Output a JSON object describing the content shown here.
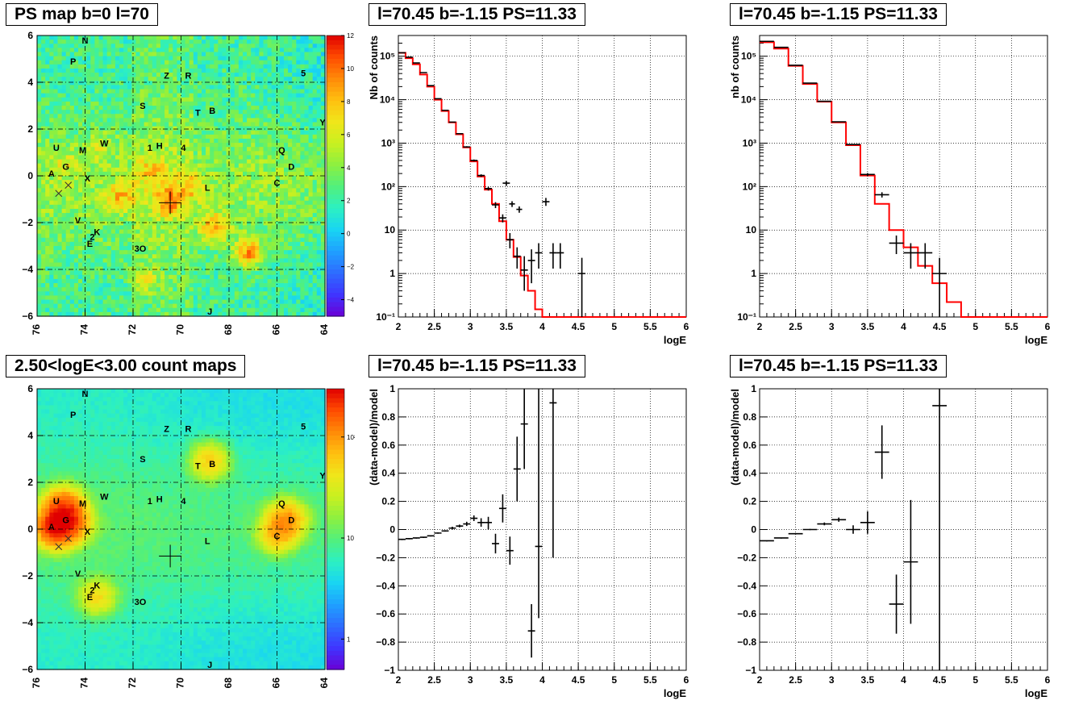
{
  "colors": {
    "model_line": "#ff0000",
    "data_points": "#000000",
    "grid": "#000000",
    "map_palette": [
      "#6a00d6",
      "#3f35ff",
      "#2e6cff",
      "#1fa0ff",
      "#19d5f2",
      "#2cf0c2",
      "#52f07c",
      "#8cf040",
      "#c8f020",
      "#f0e61a",
      "#ffbf10",
      "#ff8a08",
      "#ff4b00",
      "#e00000"
    ]
  },
  "map_labels_top": [
    {
      "t": "N",
      "l": 74,
      "b": 5.8
    },
    {
      "t": "P",
      "l": 74.5,
      "b": 4.9
    },
    {
      "t": "Z",
      "l": 70.6,
      "b": 4.3
    },
    {
      "t": "R",
      "l": 69.7,
      "b": 4.3
    },
    {
      "t": "5",
      "l": 64.9,
      "b": 4.4
    },
    {
      "t": "S",
      "l": 71.6,
      "b": 3.0
    },
    {
      "t": "T",
      "l": 69.3,
      "b": 2.7
    },
    {
      "t": "B",
      "l": 68.7,
      "b": 2.8
    },
    {
      "t": "Y",
      "l": 64.1,
      "b": 2.3
    },
    {
      "t": "U",
      "l": 75.2,
      "b": 1.2
    },
    {
      "t": "M",
      "l": 74.1,
      "b": 1.1
    },
    {
      "t": "W",
      "l": 73.2,
      "b": 1.4
    },
    {
      "t": "1",
      "l": 71.3,
      "b": 1.2
    },
    {
      "t": "H",
      "l": 70.9,
      "b": 1.3
    },
    {
      "t": "4",
      "l": 69.9,
      "b": 1.2
    },
    {
      "t": "Q",
      "l": 65.8,
      "b": 1.1
    },
    {
      "t": "D",
      "l": 65.4,
      "b": 0.4
    },
    {
      "t": "G",
      "l": 74.8,
      "b": 0.4
    },
    {
      "t": "A",
      "l": 75.4,
      "b": 0.1
    },
    {
      "t": "X",
      "l": 73.9,
      "b": -0.1
    },
    {
      "t": "C",
      "l": 66.0,
      "b": -0.3
    },
    {
      "t": "L",
      "l": 68.9,
      "b": -0.5
    },
    {
      "t": "V",
      "l": 74.3,
      "b": -1.9
    },
    {
      "t": "K",
      "l": 73.5,
      "b": -2.4
    },
    {
      "t": "2",
      "l": 73.7,
      "b": -2.6
    },
    {
      "t": "E",
      "l": 73.8,
      "b": -2.9
    },
    {
      "t": "3O",
      "l": 71.7,
      "b": -3.1
    },
    {
      "t": "J",
      "l": 68.8,
      "b": -5.8
    }
  ],
  "panels": {
    "ps_map": {
      "title": "PS map b=0 l=70",
      "palette_ticks": [
        "12",
        "10",
        "8",
        "6",
        "4",
        "2",
        "0",
        "−2",
        "−4"
      ],
      "x_ticks": [
        "76",
        "74",
        "72",
        "70",
        "68",
        "66",
        "64"
      ],
      "y_ticks": [
        "6",
        "4",
        "2",
        "0",
        "−2",
        "−4",
        "−6"
      ]
    },
    "count_map": {
      "title": "2.50<logE<3.00 count maps",
      "palette_ticks": [
        "10²",
        "10",
        "1"
      ],
      "x_ticks": [
        "76",
        "74",
        "72",
        "70",
        "68",
        "66",
        "64"
      ],
      "y_ticks": [
        "6",
        "4",
        "2",
        "0",
        "−2",
        "−4",
        "−6"
      ]
    },
    "spec_left": {
      "title": "l=70.45 b=-1.15 PS=11.33",
      "ylabel": "Nb of counts",
      "xlabel": "logE",
      "x_ticks": [
        "2",
        "2.5",
        "3",
        "3.5",
        "4",
        "4.5",
        "5",
        "5.5",
        "6"
      ],
      "y_ticks": [
        "10⁵",
        "10⁴",
        "10³",
        "10²",
        "10",
        "1",
        "10⁻¹"
      ]
    },
    "spec_right": {
      "title": "l=70.45 b=-1.15 PS=11.33",
      "ylabel": "nb of counts",
      "xlabel": "logE",
      "x_ticks": [
        "2",
        "2.5",
        "3",
        "3.5",
        "4",
        "4.5",
        "5",
        "5.5",
        "6"
      ],
      "y_ticks": [
        "10⁵",
        "10⁴",
        "10³",
        "10²",
        "10",
        "1",
        "10⁻¹"
      ]
    },
    "res_left": {
      "title": "l=70.45 b=-1.15 PS=11.33",
      "ylabel": "(data-model)/model",
      "xlabel": "logE",
      "x_ticks": [
        "2",
        "2.5",
        "3",
        "3.5",
        "4",
        "4.5",
        "5",
        "5.5",
        "6"
      ],
      "y_ticks": [
        "1",
        "0.8",
        "0.6",
        "0.4",
        "0.2",
        "0",
        "−0.2",
        "−0.4",
        "−0.6",
        "−0.8",
        "−1"
      ]
    },
    "res_right": {
      "title": "l=70.45 b=-1.15 PS=11.33",
      "ylabel": "(data-model)/model",
      "xlabel": "logE",
      "x_ticks": [
        "2",
        "2.5",
        "3",
        "3.5",
        "4",
        "4.5",
        "5",
        "5.5",
        "6"
      ],
      "y_ticks": [
        "1",
        "0.8",
        "0.6",
        "0.4",
        "0.2",
        "0",
        "−0.2",
        "−0.4",
        "−0.6",
        "−0.8",
        "−1"
      ]
    }
  },
  "chart_data": [
    {
      "type": "heatmap",
      "title": "PS map b=0 l=70",
      "xlim": [
        76,
        64
      ],
      "ylim": [
        -6,
        6
      ],
      "zlim": [
        -5,
        12
      ],
      "hotspots": [
        {
          "l": 70.5,
          "b": -1.1,
          "v": 9
        },
        {
          "l": 67.2,
          "b": -3.3,
          "v": 10
        },
        {
          "l": 72.5,
          "b": -0.9,
          "v": 8
        },
        {
          "l": 71.2,
          "b": 0.2,
          "v": 7
        },
        {
          "l": 69.6,
          "b": -0.4,
          "v": 7
        },
        {
          "l": 71.5,
          "b": -4.4,
          "v": 7
        },
        {
          "l": 68.6,
          "b": -2.2,
          "v": 9
        },
        {
          "l": 73.4,
          "b": 1.2,
          "v": 6
        },
        {
          "l": 74.8,
          "b": 0.5,
          "v": 6
        }
      ],
      "markers": [
        {
          "l": 70.45,
          "b": -1.15
        }
      ]
    },
    {
      "type": "heatmap",
      "title": "2.50<logE<3.00 count maps",
      "xlim": [
        76,
        64
      ],
      "ylim": [
        -6,
        6
      ],
      "z_scale": "log",
      "zlim": [
        0.5,
        300
      ],
      "hotspots": [
        {
          "l": 75.2,
          "b": 0.1,
          "v": 250
        },
        {
          "l": 74.9,
          "b": 0.9,
          "v": 160
        },
        {
          "l": 74.6,
          "b": 0.3,
          "v": 120
        },
        {
          "l": 65.6,
          "b": 0.4,
          "v": 90
        },
        {
          "l": 66.0,
          "b": -0.2,
          "v": 60
        },
        {
          "l": 68.8,
          "b": 2.9,
          "v": 50
        },
        {
          "l": 73.5,
          "b": -2.9,
          "v": 40
        }
      ],
      "markers": [
        {
          "l": 70.45,
          "b": -1.15
        }
      ]
    },
    {
      "type": "line",
      "title": "l=70.45 b=-1.15 PS=11.33",
      "xlabel": "logE",
      "ylabel": "Nb of counts",
      "xlim": [
        2,
        6
      ],
      "ylim": [
        0.1,
        300000
      ],
      "y_scale": "log",
      "model_bins": {
        "start": 2.0,
        "width": 0.1,
        "values": [
          120000,
          90000,
          65000,
          38000,
          20000,
          10000,
          5500,
          3000,
          1600,
          800,
          380,
          170,
          85,
          40,
          16,
          6,
          2.4,
          0.9,
          0.4,
          0.15,
          0.1,
          0.1,
          0.1,
          0.1,
          0.1,
          0.1,
          0.1,
          0.1,
          0.1,
          0.1,
          0.1,
          0.1,
          0.1,
          0.1,
          0.1,
          0.1,
          0.1,
          0.1,
          0.1,
          0.1
        ]
      },
      "data_points": [
        {
          "x": 2.05,
          "y": 120000,
          "dx": 0.05,
          "lo": 118000,
          "hi": 122000
        },
        {
          "x": 2.15,
          "y": 95000,
          "dx": 0.05,
          "lo": 93000,
          "hi": 97000
        },
        {
          "x": 2.25,
          "y": 70000,
          "dx": 0.05,
          "lo": 69000,
          "hi": 71000
        },
        {
          "x": 2.35,
          "y": 42000,
          "dx": 0.05,
          "lo": 41000,
          "hi": 43000
        },
        {
          "x": 2.45,
          "y": 21000,
          "dx": 0.05,
          "lo": 20500,
          "hi": 21500
        },
        {
          "x": 2.55,
          "y": 10500,
          "dx": 0.05,
          "lo": 10200,
          "hi": 10800
        },
        {
          "x": 2.65,
          "y": 5700,
          "dx": 0.05,
          "lo": 5600,
          "hi": 5800
        },
        {
          "x": 2.75,
          "y": 3050,
          "dx": 0.05,
          "lo": 2990,
          "hi": 3110
        },
        {
          "x": 2.85,
          "y": 1650,
          "dx": 0.05,
          "lo": 1610,
          "hi": 1690
        },
        {
          "x": 2.95,
          "y": 820,
          "dx": 0.05,
          "lo": 790,
          "hi": 850
        },
        {
          "x": 3.05,
          "y": 400,
          "dx": 0.05,
          "lo": 380,
          "hi": 420
        },
        {
          "x": 3.15,
          "y": 180,
          "dx": 0.05,
          "lo": 168,
          "hi": 192
        },
        {
          "x": 3.25,
          "y": 90,
          "dx": 0.05,
          "lo": 81,
          "hi": 99
        },
        {
          "x": 3.35,
          "y": 38,
          "dx": 0.05,
          "lo": 32,
          "hi": 44
        },
        {
          "x": 3.45,
          "y": 19,
          "dx": 0.05,
          "lo": 15,
          "hi": 23
        },
        {
          "x": 3.55,
          "y": 6,
          "dx": 0.05,
          "lo": 3.8,
          "hi": 8.5
        },
        {
          "x": 3.65,
          "y": 2.5,
          "dx": 0.05,
          "lo": 1.3,
          "hi": 4
        },
        {
          "x": 3.75,
          "y": 1.2,
          "dx": 0.05,
          "lo": 0.4,
          "hi": 2.5
        },
        {
          "x": 3.85,
          "y": 2,
          "dx": 0.05,
          "lo": 0.6,
          "hi": 3.6
        },
        {
          "x": 3.95,
          "y": 3,
          "dx": 0.05,
          "lo": 1.3,
          "hi": 5
        },
        {
          "x": 4.05,
          "y": 45,
          "dx": 0.05,
          "lo": 36,
          "hi": 55
        },
        {
          "x": 3.5,
          "y": 120,
          "dx": 0.05,
          "lo": 105,
          "hi": 135
        },
        {
          "x": 3.58,
          "y": 40,
          "dx": 0.04,
          "lo": 34,
          "hi": 46
        },
        {
          "x": 3.68,
          "y": 30,
          "dx": 0.04,
          "lo": 25,
          "hi": 35
        },
        {
          "x": 4.15,
          "y": 3,
          "dx": 0.05,
          "lo": 1.3,
          "hi": 5
        },
        {
          "x": 4.25,
          "y": 3,
          "dx": 0.05,
          "lo": 1.3,
          "hi": 5
        },
        {
          "x": 4.55,
          "y": 1,
          "dx": 0.05,
          "lo": 0.1,
          "hi": 2.3
        }
      ]
    },
    {
      "type": "line",
      "title": "l=70.45 b=-1.15 PS=11.33",
      "xlabel": "logE",
      "ylabel": "nb of counts",
      "xlim": [
        2,
        6
      ],
      "ylim": [
        0.1,
        300000
      ],
      "y_scale": "log",
      "model_bins": {
        "start": 2.0,
        "width": 0.2,
        "values": [
          210000,
          150000,
          60000,
          23000,
          9000,
          3000,
          900,
          180,
          40,
          10,
          4,
          1.5,
          0.6,
          0.22,
          0.1,
          0.1,
          0.1,
          0.1,
          0.1,
          0.1
        ]
      },
      "data_points": [
        {
          "x": 2.1,
          "y": 220000,
          "dx": 0.1,
          "lo": 218000,
          "hi": 222000
        },
        {
          "x": 2.3,
          "y": 160000,
          "dx": 0.1,
          "lo": 158000,
          "hi": 162000
        },
        {
          "x": 2.5,
          "y": 62000,
          "dx": 0.1,
          "lo": 61000,
          "hi": 63000
        },
        {
          "x": 2.7,
          "y": 24000,
          "dx": 0.1,
          "lo": 23500,
          "hi": 24500
        },
        {
          "x": 2.9,
          "y": 9200,
          "dx": 0.1,
          "lo": 9000,
          "hi": 9400
        },
        {
          "x": 3.1,
          "y": 3100,
          "dx": 0.1,
          "lo": 3000,
          "hi": 3200
        },
        {
          "x": 3.3,
          "y": 930,
          "dx": 0.1,
          "lo": 900,
          "hi": 960
        },
        {
          "x": 3.5,
          "y": 190,
          "dx": 0.1,
          "lo": 175,
          "hi": 205
        },
        {
          "x": 3.7,
          "y": 65,
          "dx": 0.1,
          "lo": 56,
          "hi": 74
        },
        {
          "x": 3.9,
          "y": 5,
          "dx": 0.1,
          "lo": 2.8,
          "hi": 7.5
        },
        {
          "x": 4.1,
          "y": 3,
          "dx": 0.1,
          "lo": 1.3,
          "hi": 5
        },
        {
          "x": 4.3,
          "y": 3,
          "dx": 0.1,
          "lo": 1.3,
          "hi": 5
        },
        {
          "x": 4.5,
          "y": 1,
          "dx": 0.1,
          "lo": 0.1,
          "hi": 2.3
        }
      ]
    },
    {
      "type": "scatter",
      "title": "l=70.45 b=-1.15 PS=11.33",
      "xlabel": "logE",
      "ylabel": "(data-model)/model",
      "xlim": [
        2,
        6
      ],
      "ylim": [
        -1,
        1
      ],
      "data_points": [
        {
          "x": 2.05,
          "y": -0.07,
          "dx": 0.05,
          "lo": -0.075,
          "hi": -0.065
        },
        {
          "x": 2.15,
          "y": -0.065,
          "dx": 0.05,
          "lo": -0.07,
          "hi": -0.06
        },
        {
          "x": 2.25,
          "y": -0.06,
          "dx": 0.05,
          "lo": -0.065,
          "hi": -0.055
        },
        {
          "x": 2.35,
          "y": -0.055,
          "dx": 0.05,
          "lo": -0.06,
          "hi": -0.05
        },
        {
          "x": 2.45,
          "y": -0.045,
          "dx": 0.05,
          "lo": -0.05,
          "hi": -0.04
        },
        {
          "x": 2.55,
          "y": -0.025,
          "dx": 0.05,
          "lo": -0.03,
          "hi": -0.02
        },
        {
          "x": 2.65,
          "y": -0.01,
          "dx": 0.05,
          "lo": -0.015,
          "hi": -0.005
        },
        {
          "x": 2.75,
          "y": 0.01,
          "dx": 0.05,
          "lo": 0,
          "hi": 0.02
        },
        {
          "x": 2.85,
          "y": 0.025,
          "dx": 0.05,
          "lo": 0.015,
          "hi": 0.035
        },
        {
          "x": 2.95,
          "y": 0.04,
          "dx": 0.05,
          "lo": 0.025,
          "hi": 0.055
        },
        {
          "x": 3.05,
          "y": 0.08,
          "dx": 0.05,
          "lo": 0.06,
          "hi": 0.1
        },
        {
          "x": 3.15,
          "y": 0.05,
          "dx": 0.05,
          "lo": 0.02,
          "hi": 0.08
        },
        {
          "x": 3.25,
          "y": 0.05,
          "dx": 0.05,
          "lo": 0,
          "hi": 0.09
        },
        {
          "x": 3.35,
          "y": -0.1,
          "dx": 0.05,
          "lo": -0.17,
          "hi": -0.03
        },
        {
          "x": 3.45,
          "y": 0.15,
          "dx": 0.05,
          "lo": 0.05,
          "hi": 0.25
        },
        {
          "x": 3.55,
          "y": -0.15,
          "dx": 0.05,
          "lo": -0.25,
          "hi": -0.05
        },
        {
          "x": 3.65,
          "y": 0.43,
          "dx": 0.05,
          "lo": 0.2,
          "hi": 0.66
        },
        {
          "x": 3.75,
          "y": 0.75,
          "dx": 0.05,
          "lo": 0.43,
          "hi": 1.0
        },
        {
          "x": 3.85,
          "y": -0.72,
          "dx": 0.05,
          "lo": -0.91,
          "hi": -0.53
        },
        {
          "x": 3.95,
          "y": -0.12,
          "dx": 0.05,
          "lo": -0.63,
          "hi": 1.0
        },
        {
          "x": 4.15,
          "y": 0.9,
          "dx": 0.05,
          "lo": -0.2,
          "hi": 1.0
        }
      ]
    },
    {
      "type": "scatter",
      "title": "l=70.45 b=-1.15 PS=11.33",
      "xlabel": "logE",
      "ylabel": "(data-model)/model",
      "xlim": [
        2,
        6
      ],
      "ylim": [
        -1,
        1
      ],
      "data_points": [
        {
          "x": 2.1,
          "y": -0.08,
          "dx": 0.1,
          "lo": -0.085,
          "hi": -0.075
        },
        {
          "x": 2.3,
          "y": -0.06,
          "dx": 0.1,
          "lo": -0.065,
          "hi": -0.055
        },
        {
          "x": 2.5,
          "y": -0.03,
          "dx": 0.1,
          "lo": -0.035,
          "hi": -0.025
        },
        {
          "x": 2.7,
          "y": 0,
          "dx": 0.1,
          "lo": -0.005,
          "hi": 0.005
        },
        {
          "x": 2.9,
          "y": 0.04,
          "dx": 0.1,
          "lo": 0.03,
          "hi": 0.05
        },
        {
          "x": 3.1,
          "y": 0.07,
          "dx": 0.1,
          "lo": 0.055,
          "hi": 0.085
        },
        {
          "x": 3.3,
          "y": 0,
          "dx": 0.1,
          "lo": -0.03,
          "hi": 0.03
        },
        {
          "x": 3.5,
          "y": 0.05,
          "dx": 0.1,
          "lo": -0.03,
          "hi": 0.13
        },
        {
          "x": 3.7,
          "y": 0.55,
          "dx": 0.1,
          "lo": 0.36,
          "hi": 0.74
        },
        {
          "x": 3.9,
          "y": -0.53,
          "dx": 0.1,
          "lo": -0.74,
          "hi": -0.32
        },
        {
          "x": 4.1,
          "y": -0.23,
          "dx": 0.1,
          "lo": -0.67,
          "hi": 0.21
        },
        {
          "x": 4.5,
          "y": 0.88,
          "dx": 0.1,
          "lo": -1.0,
          "hi": 1.0
        }
      ]
    }
  ]
}
